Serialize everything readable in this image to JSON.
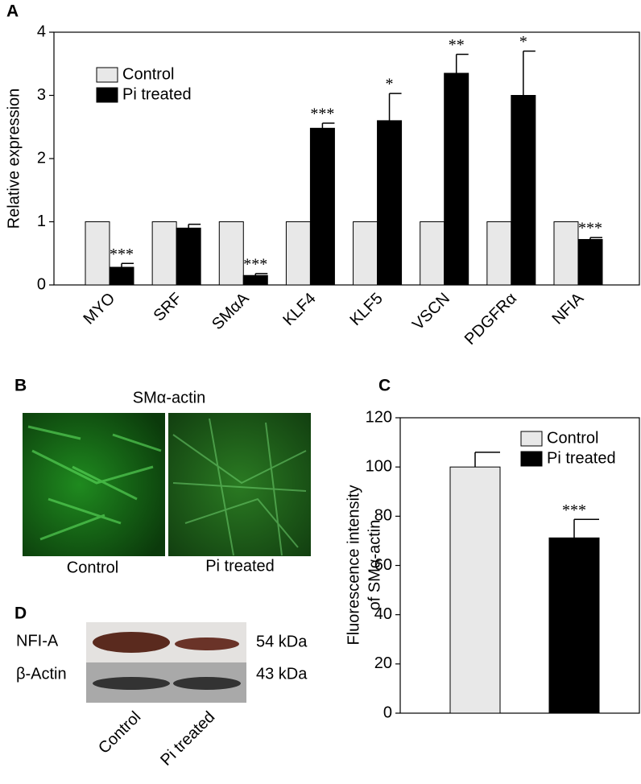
{
  "panel_labels": [
    "A",
    "B",
    "C",
    "D"
  ],
  "chart_data": [
    {
      "type": "bar",
      "ylabel": [
        "Relative expression"
      ],
      "categories": [
        "MYO",
        "SRF",
        "SMαA",
        "KLF4",
        "KLF5",
        "VSCN",
        "PDGFRα",
        "NFIA"
      ],
      "series": [
        {
          "name": "Control",
          "color": "#e8e8e8",
          "values": [
            1,
            1,
            1,
            1,
            1,
            1,
            1,
            1
          ]
        },
        {
          "name": "Pi treated",
          "color": "#000000",
          "values": [
            0.28,
            0.9,
            0.15,
            2.48,
            2.6,
            3.35,
            3.0,
            0.72
          ],
          "errors": [
            0.06,
            0.06,
            0.03,
            0.08,
            0.43,
            0.3,
            0.7,
            0.03
          ]
        }
      ],
      "annotations": [
        "***",
        null,
        "***",
        "***",
        "*",
        "**",
        "*",
        "***"
      ],
      "ylim": [
        0,
        4
      ],
      "yticks": [
        0,
        1,
        2,
        3,
        4
      ],
      "legend": "upper left"
    },
    {
      "type": "bar",
      "ylabel": [
        "Fluorescence intensity",
        "of SMα-actin"
      ],
      "categories": [
        null
      ],
      "series": [
        {
          "name": "Control",
          "color": "#e8e8e8",
          "values": [
            100
          ],
          "errors": [
            6
          ]
        },
        {
          "name": "Pi treated",
          "color": "#000000",
          "values": [
            71.2
          ],
          "errors": [
            7.5
          ]
        }
      ],
      "annotations": [
        "***"
      ],
      "ylim": [
        0,
        120
      ],
      "yticks": [
        0,
        20,
        40,
        60,
        80,
        100,
        120
      ],
      "legend": "upper right"
    }
  ],
  "panel_b": {
    "title": "SMα-actin",
    "labels": [
      "Control",
      "Pi treated"
    ]
  },
  "panel_d": {
    "rows": [
      "NFI-A",
      "β-Actin"
    ],
    "sizes": [
      "54 kDa",
      "43 kDa"
    ],
    "lanes": [
      "Control",
      "Pi treated"
    ]
  }
}
